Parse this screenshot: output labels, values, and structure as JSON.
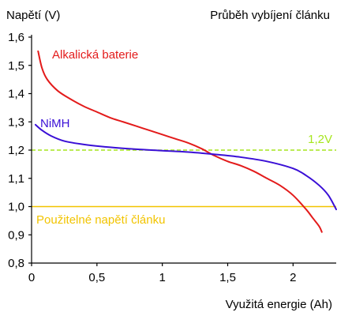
{
  "chart_data": {
    "type": "line",
    "title": "Průběh vybíjení článku",
    "xlabel": "Využitá energie (Ah)",
    "ylabel": "Napětí (V)",
    "xlim": [
      0,
      2.33
    ],
    "ylim": [
      0.8,
      1.6
    ],
    "x_ticks": [
      {
        "value": 0,
        "label": "0"
      },
      {
        "value": 0.5,
        "label": "0,5"
      },
      {
        "value": 1,
        "label": "1"
      },
      {
        "value": 1.5,
        "label": "1,5"
      },
      {
        "value": 2,
        "label": "2"
      }
    ],
    "y_ticks": [
      {
        "value": 0.8,
        "label": "0,8"
      },
      {
        "value": 0.9,
        "label": "0,9"
      },
      {
        "value": 1.0,
        "label": "1,0"
      },
      {
        "value": 1.1,
        "label": "1,1"
      },
      {
        "value": 1.2,
        "label": "1,2"
      },
      {
        "value": 1.3,
        "label": "1,3"
      },
      {
        "value": 1.4,
        "label": "1,4"
      },
      {
        "value": 1.5,
        "label": "1,5"
      },
      {
        "value": 1.6,
        "label": "1,6"
      }
    ],
    "grid": false,
    "series": [
      {
        "name": "Alkalická baterie",
        "color": "#e31b1b",
        "x": [
          0.05,
          0.08,
          0.12,
          0.2,
          0.3,
          0.4,
          0.5,
          0.6,
          0.7,
          0.8,
          0.9,
          1.0,
          1.1,
          1.2,
          1.3,
          1.4,
          1.5,
          1.6,
          1.7,
          1.8,
          1.9,
          2.0,
          2.1,
          2.15,
          2.2,
          2.22
        ],
        "y": [
          1.55,
          1.49,
          1.45,
          1.41,
          1.38,
          1.355,
          1.335,
          1.315,
          1.3,
          1.285,
          1.27,
          1.255,
          1.24,
          1.225,
          1.205,
          1.18,
          1.16,
          1.145,
          1.125,
          1.1,
          1.075,
          1.04,
          0.99,
          0.96,
          0.93,
          0.91
        ]
      },
      {
        "name": "NiMH",
        "color": "#3a0fd6",
        "x": [
          0.03,
          0.08,
          0.15,
          0.25,
          0.4,
          0.6,
          0.8,
          1.0,
          1.2,
          1.4,
          1.6,
          1.8,
          2.0,
          2.1,
          2.2,
          2.27,
          2.33
        ],
        "y": [
          1.29,
          1.27,
          1.25,
          1.232,
          1.22,
          1.21,
          1.203,
          1.198,
          1.193,
          1.185,
          1.175,
          1.16,
          1.135,
          1.11,
          1.075,
          1.04,
          0.99
        ]
      }
    ],
    "reference_lines": [
      {
        "label": "1,2V",
        "value": 1.2,
        "color": "#a6e61e",
        "style": "dashed"
      },
      {
        "label": "Použitelné napětí článku",
        "value": 1.0,
        "color": "#f2c400",
        "style": "solid"
      }
    ],
    "axis_color": "#000000"
  }
}
